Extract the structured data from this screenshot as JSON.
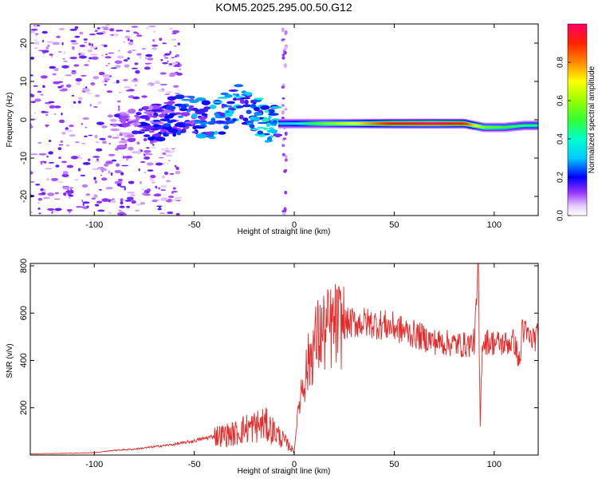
{
  "title": "KOM5.2025.295.00.50.G12",
  "colors": {
    "snr_line": "#e62a2a",
    "spectro_low": "#cc99ff",
    "spectro_mid": "#6600ff",
    "spectro_high": "#00ff66"
  },
  "chart_data": [
    {
      "type": "heatmap",
      "xlabel": "Height of straight line (km)",
      "ylabel": "Frequency (Hz)",
      "xlim": [
        -132,
        122
      ],
      "ylim": [
        -25,
        25
      ],
      "x_ticks": [
        -100,
        -50,
        0,
        50,
        100
      ],
      "y_ticks": [
        20,
        10,
        0,
        -10,
        -20
      ],
      "x_tick_labels": [
        "-100",
        "-50",
        "0",
        "50",
        "100"
      ],
      "y_tick_labels": [
        "20",
        "10",
        "0",
        "-10",
        "-20"
      ],
      "grid": false,
      "colorbar": {
        "label": "Normalized spectral amplitude",
        "range": [
          0.0,
          1.0
        ],
        "ticks": [
          0.0,
          0.2,
          0.4,
          0.6,
          0.8
        ],
        "tick_labels": [
          "0.0",
          "0.2",
          "0.4",
          "0.6",
          "0.8"
        ]
      },
      "ridge": {
        "description_points_x": [
          -85,
          -70,
          -55,
          -40,
          -30,
          -22,
          -15,
          -8,
          0,
          10,
          30,
          50,
          70,
          85,
          95,
          105,
          115,
          122
        ],
        "description_points_y": [
          -3,
          -1,
          2,
          -1,
          5,
          3,
          -1,
          -1,
          -1,
          -1,
          -1,
          -1,
          -1,
          -1,
          -2,
          -2,
          -1.5,
          -1.5
        ],
        "amplitude": [
          0.15,
          0.2,
          0.25,
          0.3,
          0.35,
          0.3,
          0.4,
          0.3,
          0.35,
          0.5,
          0.7,
          0.95,
          1.0,
          0.9,
          0.55,
          0.5,
          0.45,
          0.45
        ]
      }
    },
    {
      "type": "line",
      "xlabel": "Height of straight line (km)",
      "ylabel": "SNR (v/v)",
      "xlim": [
        -132,
        122
      ],
      "ylim": [
        0,
        810
      ],
      "x_ticks": [
        -100,
        -50,
        0,
        50,
        100
      ],
      "y_ticks": [
        200,
        400,
        600,
        800
      ],
      "x_tick_labels": [
        "-100",
        "-50",
        "0",
        "50",
        "100"
      ],
      "y_tick_labels": [
        "200",
        "400",
        "600",
        "800"
      ],
      "grid": false,
      "series": [
        {
          "x": [
            -132,
            -110,
            -100,
            -90,
            -80,
            -70,
            -60,
            -50,
            -40,
            -30,
            -25,
            -20,
            -15,
            -10,
            -5,
            0,
            2,
            4,
            6,
            8,
            10,
            12,
            15,
            20,
            25,
            30,
            35,
            40,
            45,
            50,
            60,
            70,
            80,
            85,
            88,
            90,
            91,
            92,
            93,
            94,
            96,
            100,
            105,
            110,
            113,
            114,
            115,
            118,
            122
          ],
          "y": [
            5,
            8,
            10,
            20,
            25,
            35,
            45,
            60,
            80,
            90,
            110,
            120,
            130,
            100,
            60,
            15,
            200,
            300,
            350,
            420,
            470,
            500,
            520,
            545,
            555,
            560,
            560,
            555,
            550,
            540,
            510,
            480,
            470,
            465,
            470,
            480,
            600,
            800,
            120,
            480,
            480,
            475,
            470,
            480,
            380,
            560,
            520,
            490,
            500
          ]
        }
      ]
    }
  ]
}
